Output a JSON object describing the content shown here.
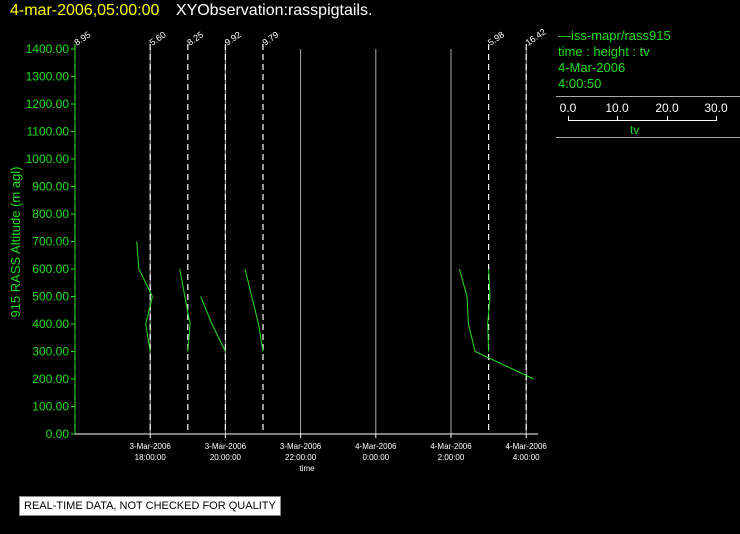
{
  "header": {
    "date_label": "4-mar-2006,05:00:00",
    "observation_label": "XYObservation:rasspigtails."
  },
  "legend": {
    "series_line": "—iss-mapr/rass915",
    "variables": "time : height : tv",
    "date": "4-Mar-2006",
    "time": "4:00:50",
    "scale_ticks": [
      "0.0",
      "10.0",
      "20.0",
      "30.0"
    ],
    "scale_label": "tv"
  },
  "footer": {
    "notice": "REAL-TIME DATA, NOT CHECKED FOR QUALITY"
  },
  "colors": {
    "background": "#000000",
    "data": "#22dd22",
    "axis": "#ffffff",
    "title_date": "#ffff00"
  },
  "chart_data": {
    "type": "line",
    "title": "4-mar-2006,05:00:00  XYObservation:rasspigtails.",
    "xlabel": "time",
    "ylabel": "915 RASS Altitude (m agl)",
    "ylim": [
      0,
      1400
    ],
    "yticks": [
      "0.00",
      "100.00",
      "200.00",
      "300.00",
      "400.00",
      "500.00",
      "600.00",
      "700.00",
      "800.00",
      "900.00",
      "1000.00",
      "1100.00",
      "1200.00",
      "1300.00",
      "1400.00"
    ],
    "xlim": [
      "3-Mar-2006 16:00",
      "4-Mar-2006 05:00"
    ],
    "xticks": [
      {
        "time": "3-Mar-2006 18:00",
        "date": "3-Mar-2006",
        "clock": "18:00:00"
      },
      {
        "time": "3-Mar-2006 20:00",
        "date": "3-Mar-2006",
        "clock": "20:00:00"
      },
      {
        "time": "3-Mar-2006 22:00",
        "date": "3-Mar-2006",
        "clock": "22:00:00"
      },
      {
        "time": "4-Mar-2006 00:00",
        "date": "4-Mar-2006",
        "clock": "0:00:00"
      },
      {
        "time": "4-Mar-2006 02:00",
        "date": "4-Mar-2006",
        "clock": "2:00:00"
      },
      {
        "time": "4-Mar-2006 04:00",
        "date": "4-Mar-2006",
        "clock": "4:00:00"
      }
    ],
    "baselines": [
      {
        "time": "3-Mar-2006 16:00",
        "label": "8.95"
      },
      {
        "time": "3-Mar-2006 18:00",
        "label": "5.60"
      },
      {
        "time": "3-Mar-2006 19:00",
        "label": "8.25"
      },
      {
        "time": "3-Mar-2006 20:00",
        "label": "9.92"
      },
      {
        "time": "3-Mar-2006 21:00",
        "label": "9.79"
      },
      {
        "time": "4-Mar-2006 03:00",
        "label": "5.98"
      },
      {
        "time": "4-Mar-2006 04:00",
        "label": "16.42"
      }
    ],
    "profiles": [
      {
        "base": "3-Mar-2006 18:00",
        "points": [
          [
            -3.0,
            700
          ],
          [
            -2.5,
            600
          ],
          [
            0.5,
            500
          ],
          [
            -1.0,
            400
          ],
          [
            0,
            300
          ]
        ]
      },
      {
        "base": "3-Mar-2006 19:00",
        "points": [
          [
            -1.8,
            600
          ],
          [
            0.5,
            400
          ],
          [
            0,
            300
          ]
        ]
      },
      {
        "base": "3-Mar-2006 20:00",
        "points": [
          [
            -5.5,
            500
          ],
          [
            -3.0,
            400
          ],
          [
            0,
            300
          ]
        ]
      },
      {
        "base": "3-Mar-2006 21:00",
        "points": [
          [
            -4.0,
            600
          ],
          [
            -1.0,
            400
          ],
          [
            0,
            300
          ]
        ]
      },
      {
        "base": "4-Mar-2006 03:00",
        "points": [
          [
            -6.5,
            600
          ],
          [
            -4.8,
            500
          ],
          [
            -4.5,
            400
          ],
          [
            -3.0,
            300
          ],
          [
            10.0,
            200
          ]
        ]
      },
      {
        "base": "4-Mar-2006 03:00",
        "points": [
          [
            0.0,
            600
          ],
          [
            0.3,
            500
          ],
          [
            -0.2,
            400
          ],
          [
            0,
            300
          ]
        ]
      }
    ],
    "grid": false
  }
}
